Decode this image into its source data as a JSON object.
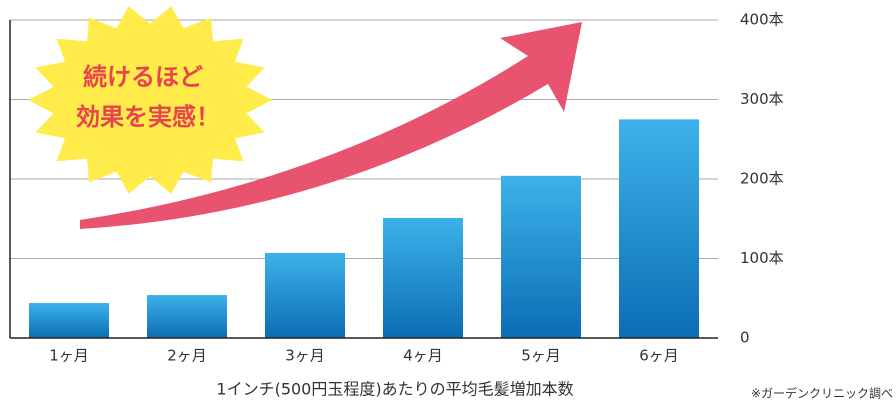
{
  "chart_data": {
    "type": "bar",
    "categories": [
      "1ヶ月",
      "2ヶ月",
      "3ヶ月",
      "4ヶ月",
      "5ヶ月",
      "6ヶ月"
    ],
    "values": [
      44,
      54,
      107,
      151,
      204,
      275
    ],
    "color": "#1a8fd6",
    "ylim": [
      0,
      400
    ],
    "yticks": [
      0,
      {
        "value": 100,
        "label": "100本"
      },
      {
        "value": 200,
        "label": "200本"
      },
      {
        "value": 300,
        "label": "300本"
      },
      {
        "value": 400,
        "label": "400本"
      }
    ],
    "grid": true,
    "x_label": "1インチ(500円玉程度)あたりの平均毛髪増加本数",
    "source": "※ガーデンクリニック調べ",
    "annotations": [
      "続けるほど",
      "効果を実感！"
    ]
  }
}
